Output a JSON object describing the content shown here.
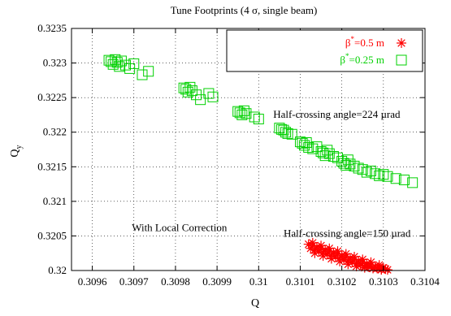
{
  "chart_data": {
    "type": "scatter",
    "title": "Tune Footprints (4 σ, single beam)",
    "xlabel": "Q",
    "ylabel": "Q",
    "ylabel_sub": "y",
    "xlim": [
      0.30955,
      0.3104
    ],
    "ylim": [
      0.32,
      0.3235
    ],
    "x_ticks": [
      0.3096,
      0.3097,
      0.3098,
      0.3099,
      0.31,
      0.3101,
      0.3102,
      0.3103,
      0.3104
    ],
    "x_tick_labels": [
      "0.3096",
      "0.3097",
      "0.3098",
      "0.3099",
      "0.31",
      "0.3101",
      "0.3102",
      "0.3103",
      "0.3104"
    ],
    "y_ticks": [
      0.32,
      0.3205,
      0.321,
      0.3215,
      0.322,
      0.3225,
      0.323,
      0.3235
    ],
    "y_tick_labels": [
      "0.32",
      "0.3205",
      "0.321",
      "0.3215",
      "0.322",
      "0.3225",
      "0.323",
      "0.3235"
    ],
    "grid": true,
    "legend_position": "top-right",
    "series": [
      {
        "name": "β*=0.5 m",
        "label_main": "β",
        "label_sup": "*",
        "label_rest": "=0.5 m",
        "marker": "asterisk",
        "color": "#ff0000",
        "x": [
          0.31012,
          0.310125,
          0.31013,
          0.310135,
          0.31014,
          0.310145,
          0.31015,
          0.310155,
          0.31016,
          0.310165,
          0.31017,
          0.310175,
          0.31018,
          0.310185,
          0.31019,
          0.310195,
          0.3102,
          0.310205,
          0.31021,
          0.310215,
          0.31022,
          0.310225,
          0.31023,
          0.310235,
          0.31024,
          0.310245,
          0.31025,
          0.310255,
          0.31026,
          0.310265,
          0.31027,
          0.310275,
          0.31028,
          0.310285,
          0.31029,
          0.310295,
          0.3103,
          0.31013,
          0.31015,
          0.31017,
          0.31019,
          0.31021,
          0.31023,
          0.31025,
          0.31027,
          0.31029,
          0.310135,
          0.310155,
          0.310175,
          0.310195,
          0.310215,
          0.310235,
          0.310255,
          0.310275,
          0.310295,
          0.310305,
          0.31031
        ],
        "y": [
          0.32038,
          0.32032,
          0.32036,
          0.3203,
          0.32034,
          0.32028,
          0.32032,
          0.32026,
          0.3203,
          0.32024,
          0.32028,
          0.32022,
          0.32026,
          0.3202,
          0.32024,
          0.32018,
          0.32022,
          0.32016,
          0.3202,
          0.32014,
          0.32018,
          0.32012,
          0.32016,
          0.3201,
          0.32014,
          0.32008,
          0.32012,
          0.32006,
          0.3201,
          0.32005,
          0.32008,
          0.32004,
          0.32006,
          0.32003,
          0.32005,
          0.32002,
          0.32004,
          0.3204,
          0.32036,
          0.32032,
          0.32028,
          0.32024,
          0.3202,
          0.32016,
          0.32012,
          0.32008,
          0.32025,
          0.32021,
          0.32017,
          0.32013,
          0.32009,
          0.32006,
          0.32004,
          0.32003,
          0.32001,
          0.32002,
          0.32001
        ]
      },
      {
        "name": "β*=0.25 m",
        "label_main": "β",
        "label_sup": "*",
        "label_rest": "=0.25 m",
        "marker": "square",
        "color": "#00d000",
        "x": [
          0.30964,
          0.309645,
          0.30965,
          0.309655,
          0.30966,
          0.309665,
          0.30967,
          0.30968,
          0.30969,
          0.3097,
          0.30972,
          0.309735,
          0.30982,
          0.309825,
          0.30983,
          0.309835,
          0.30984,
          0.30985,
          0.30986,
          0.30988,
          0.30989,
          0.30995,
          0.309955,
          0.30996,
          0.309965,
          0.30997,
          0.30999,
          0.31,
          0.31005,
          0.310055,
          0.31006,
          0.310065,
          0.31007,
          0.31008,
          0.3101,
          0.310105,
          0.31011,
          0.310115,
          0.31012,
          0.31013,
          0.31014,
          0.31015,
          0.310155,
          0.31016,
          0.310165,
          0.31017,
          0.31018,
          0.31019,
          0.3102,
          0.310205,
          0.31021,
          0.310215,
          0.31022,
          0.31023,
          0.31024,
          0.31025,
          0.31026,
          0.31027,
          0.31028,
          0.31029,
          0.3103,
          0.31031,
          0.31033,
          0.31035,
          0.31037
        ],
        "y": [
          0.32304,
          0.32302,
          0.32298,
          0.32305,
          0.32301,
          0.32295,
          0.32303,
          0.32297,
          0.32292,
          0.32299,
          0.32283,
          0.32288,
          0.32264,
          0.32262,
          0.32258,
          0.32265,
          0.3226,
          0.32254,
          0.32247,
          0.32256,
          0.32251,
          0.3223,
          0.32228,
          0.32225,
          0.32231,
          0.32227,
          0.32222,
          0.32219,
          0.32206,
          0.32204,
          0.32203,
          0.322,
          0.32198,
          0.32197,
          0.32186,
          0.32184,
          0.32181,
          0.32185,
          0.32178,
          0.32176,
          0.32179,
          0.32172,
          0.3217,
          0.32166,
          0.32174,
          0.32169,
          0.32165,
          0.32163,
          0.32158,
          0.32155,
          0.32152,
          0.3216,
          0.32154,
          0.32151,
          0.32148,
          0.32146,
          0.32142,
          0.32144,
          0.3214,
          0.32137,
          0.32139,
          0.32136,
          0.32133,
          0.32131,
          0.32127
        ]
      }
    ],
    "annotations": [
      {
        "text": "Half-crossing angle=224 µrad",
        "x": 0.310035,
        "y": 0.32221
      },
      {
        "text": "With Local Correction",
        "x": 0.309695,
        "y": 0.32057
      },
      {
        "text": "Half-crossing angle=150 µrad",
        "x": 0.31006,
        "y": 0.32049
      }
    ]
  }
}
